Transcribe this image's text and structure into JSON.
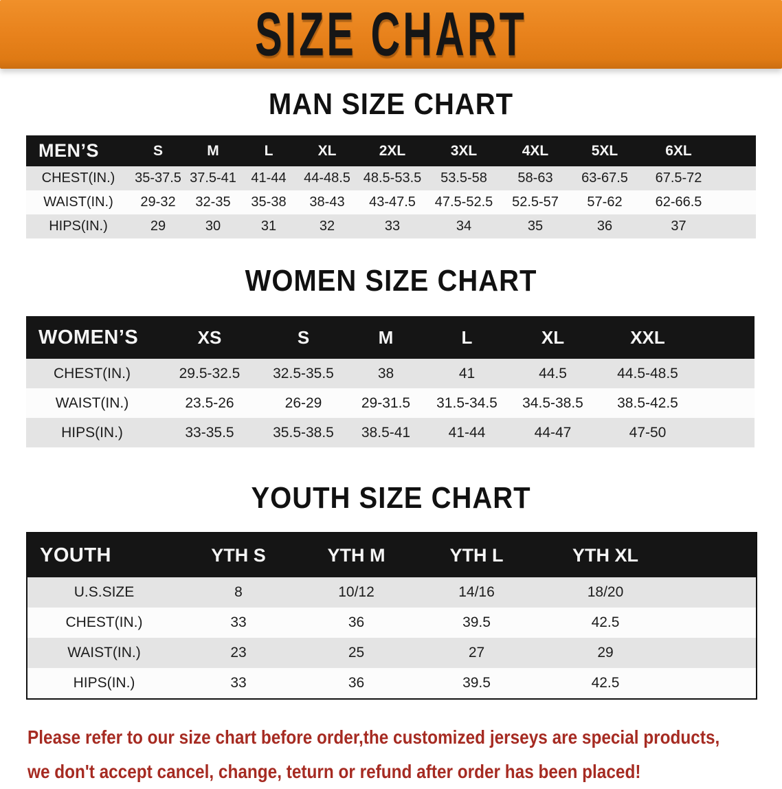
{
  "colors": {
    "banner_bg": "#e8821c",
    "header_bar": "#151515",
    "row_gray": "#e4e4e4",
    "note_red": "#a62b22"
  },
  "banner": {
    "title": "SIZE CHART"
  },
  "sections": [
    {
      "heading": "MAN SIZE CHART",
      "table": {
        "header_label": "MEN’S",
        "columns": [
          "S",
          "M",
          "L",
          "XL",
          "2XL",
          "3XL",
          "4XL",
          "5XL",
          "6XL"
        ],
        "rows": [
          {
            "label": "CHEST(IN.)",
            "values": [
              "35-37.5",
              "37.5-41",
              "41-44",
              "44-48.5",
              "48.5-53.5",
              "53.5-58",
              "58-63",
              "63-67.5",
              "67.5-72"
            ]
          },
          {
            "label": "WAIST(IN.)",
            "values": [
              "29-32",
              "32-35",
              "35-38",
              "38-43",
              "43-47.5",
              "47.5-52.5",
              "52.5-57",
              "57-62",
              "62-66.5"
            ]
          },
          {
            "label": "HIPS(IN.)",
            "values": [
              "29",
              "30",
              "31",
              "32",
              "33",
              "34",
              "35",
              "36",
              "37"
            ]
          }
        ]
      }
    },
    {
      "heading": "WOMEN SIZE CHART",
      "table": {
        "header_label": "WOMEN’S",
        "columns": [
          "XS",
          "S",
          "M",
          "L",
          "XL",
          "XXL"
        ],
        "rows": [
          {
            "label": "CHEST(IN.)",
            "values": [
              "29.5-32.5",
              "32.5-35.5",
              "38",
              "41",
              "44.5",
              "44.5-48.5"
            ]
          },
          {
            "label": "WAIST(IN.)",
            "values": [
              "23.5-26",
              "26-29",
              "29-31.5",
              "31.5-34.5",
              "34.5-38.5",
              "38.5-42.5"
            ]
          },
          {
            "label": "HIPS(IN.)",
            "values": [
              "33-35.5",
              "35.5-38.5",
              "38.5-41",
              "41-44",
              "44-47",
              "47-50"
            ]
          }
        ]
      }
    },
    {
      "heading": "YOUTH SIZE CHART",
      "table": {
        "header_label": "YOUTH",
        "columns": [
          "YTH S",
          "YTH M",
          "YTH L",
          "YTH XL"
        ],
        "rows": [
          {
            "label": "U.S.SIZE",
            "values": [
              "8",
              "10/12",
              "14/16",
              "18/20"
            ]
          },
          {
            "label": "CHEST(IN.)",
            "values": [
              "33",
              "36",
              "39.5",
              "42.5"
            ]
          },
          {
            "label": "WAIST(IN.)",
            "values": [
              "23",
              "25",
              "27",
              "29"
            ]
          },
          {
            "label": "HIPS(IN.)",
            "values": [
              "33",
              "36",
              "39.5",
              "42.5"
            ]
          }
        ]
      }
    }
  ],
  "footer_note": {
    "line1": "Please refer to our size chart before order,the customized jerseys are special products,",
    "line2": "we don't accept cancel, change, teturn or refund after order has been placed!"
  }
}
